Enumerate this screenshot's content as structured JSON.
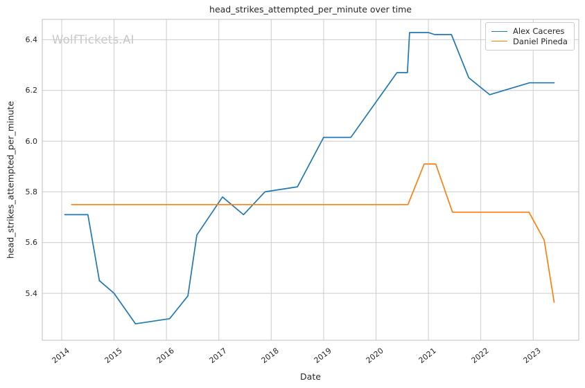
{
  "watermark": "WolfTickets.AI",
  "style": {
    "background": "#ffffff",
    "grid_color": "#cccccc",
    "spine_color": "#c8c8c8",
    "text_color": "#262626",
    "watermark_color": "#c8c8c8"
  },
  "chart_data": {
    "type": "line",
    "title": "head_strikes_attempted_per_minute over time",
    "xlabel": "Date",
    "ylabel": "head_strikes_attempted_per_minute",
    "grid": true,
    "legend_position": "upper right",
    "xlim": [
      2013.63,
      2023.87
    ],
    "ylim": [
      5.215,
      6.48
    ],
    "x_ticks": [
      2014,
      2015,
      2016,
      2017,
      2018,
      2019,
      2020,
      2021,
      2022,
      2023
    ],
    "y_ticks": [
      5.4,
      5.6,
      5.8,
      6.0,
      6.2,
      6.4
    ],
    "series": [
      {
        "name": "Alex Caceres",
        "color": "#1f77b4",
        "points": [
          [
            2014.06,
            5.71
          ],
          [
            2014.5,
            5.71
          ],
          [
            2014.72,
            5.45
          ],
          [
            2015.0,
            5.4
          ],
          [
            2015.41,
            5.28
          ],
          [
            2016.06,
            5.3
          ],
          [
            2016.41,
            5.39
          ],
          [
            2016.58,
            5.63
          ],
          [
            2017.07,
            5.78
          ],
          [
            2017.47,
            5.71
          ],
          [
            2017.88,
            5.8
          ],
          [
            2018.5,
            5.82
          ],
          [
            2019.0,
            6.015
          ],
          [
            2019.52,
            6.015
          ],
          [
            2020.4,
            6.27
          ],
          [
            2020.6,
            6.27
          ],
          [
            2020.64,
            6.428
          ],
          [
            2021.0,
            6.428
          ],
          [
            2021.12,
            6.42
          ],
          [
            2021.44,
            6.42
          ],
          [
            2021.77,
            6.25
          ],
          [
            2022.17,
            6.183
          ],
          [
            2022.93,
            6.23
          ],
          [
            2023.4,
            6.23
          ]
        ]
      },
      {
        "name": "Daniel Pineda",
        "color": "#ff7f0e",
        "points": [
          [
            2014.19,
            5.75
          ],
          [
            2020.61,
            5.75
          ],
          [
            2020.92,
            5.91
          ],
          [
            2021.14,
            5.91
          ],
          [
            2021.46,
            5.72
          ],
          [
            2022.92,
            5.72
          ],
          [
            2023.21,
            5.61
          ],
          [
            2023.4,
            5.365
          ]
        ]
      }
    ]
  }
}
